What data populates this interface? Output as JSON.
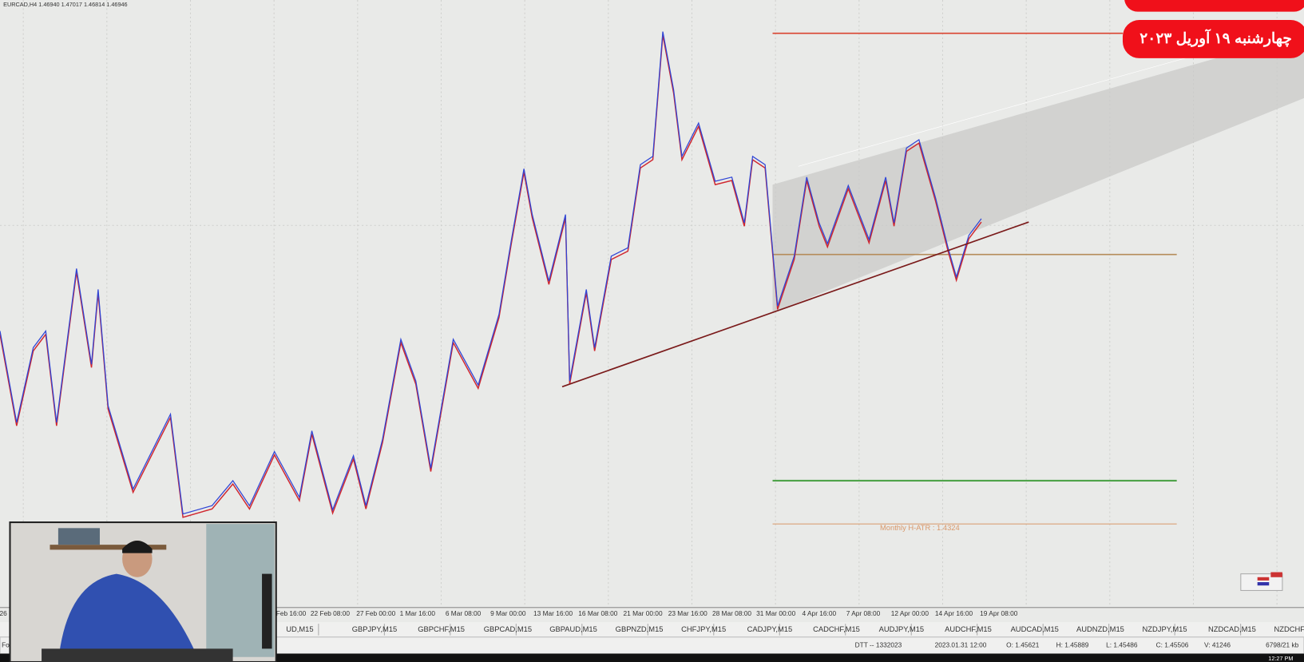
{
  "header": {
    "symbol_info": "EURCAD,H4  1.46940 1.47017 1.46814 1.46946"
  },
  "badge": {
    "date": "چهارشنبه ۱۹ آوریل ۲۰۲۳"
  },
  "annotations": {
    "atr": "Monthly H-ATR : 1.4324"
  },
  "time_axis": [
    "26",
    "Feb 16:00",
    "22 Feb 08:00",
    "27 Feb 00:00",
    "1 Mar 16:00",
    "6 Mar 08:00",
    "9 Mar 00:00",
    "13 Mar 16:00",
    "16 Mar 08:00",
    "21 Mar 00:00",
    "23 Mar 16:00",
    "28 Mar 08:00",
    "31 Mar 00:00",
    "4 Apr 16:00",
    "7 Apr 08:00",
    "12 Apr 00:00",
    "14 Apr 16:00",
    "19 Apr 08:00"
  ],
  "tabs": [
    "UD,M15",
    "GBPJPY,M15",
    "GBPCHF,M15",
    "GBPCAD,M15",
    "GBPAUD,M15",
    "GBPNZD,M15",
    "CHFJPY,M15",
    "CADJPY,M15",
    "CADCHF,M15",
    "AUDJPY,M15",
    "AUDCHF,M15",
    "AUDCAD,M15",
    "AUDNZD,M15",
    "NZDJPY,M15",
    "NZDCAD,M15",
    "NZDCHF,M15"
  ],
  "status_bar": {
    "left": "Fo",
    "items": [
      "DTT -- 1332023",
      "2023.01.31 12:00",
      "O: 1.45621",
      "H: 1.45889",
      "L: 1.45486",
      "C: 1.45506",
      "V: 41246",
      "6798/21 kb"
    ]
  },
  "clock": "12:27 PM"
}
